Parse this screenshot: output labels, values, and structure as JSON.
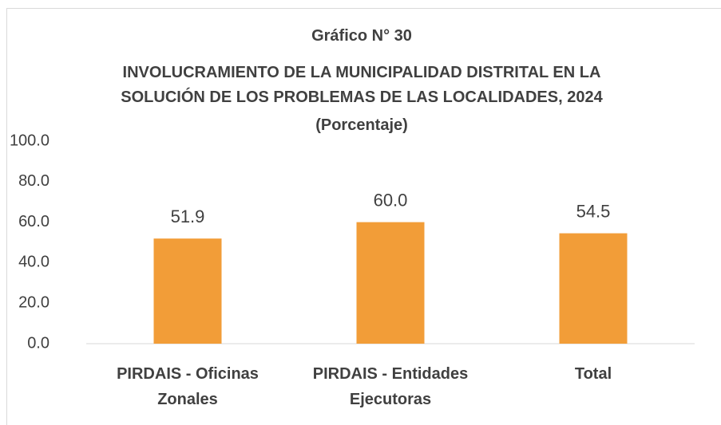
{
  "chart_data": {
    "type": "bar",
    "chart_number": "Gráfico N° 30",
    "title": "INVOLUCRAMIENTO DE LA MUNICIPALIDAD DISTRITAL EN LA SOLUCIÓN DE LOS PROBLEMAS DE LAS LOCALIDADES, 2024",
    "subtitle": "(Porcentaje)",
    "categories": [
      "PIRDAIS - Oficinas Zonales",
      "PIRDAIS - Entidades Ejecutoras",
      "Total"
    ],
    "values": [
      51.9,
      60.0,
      54.5
    ],
    "value_labels": [
      "51.9",
      "60.0",
      "54.5"
    ],
    "color": "#f29d38",
    "ylim": [
      0,
      100
    ],
    "yticks": [
      {
        "value": 0,
        "label": "0.0"
      },
      {
        "value": 20,
        "label": "20.0"
      },
      {
        "value": 40,
        "label": "40.0"
      },
      {
        "value": 60,
        "label": "60.0"
      },
      {
        "value": 80,
        "label": "80.0"
      },
      {
        "value": 100,
        "label": "100.0"
      }
    ],
    "grid": false
  }
}
